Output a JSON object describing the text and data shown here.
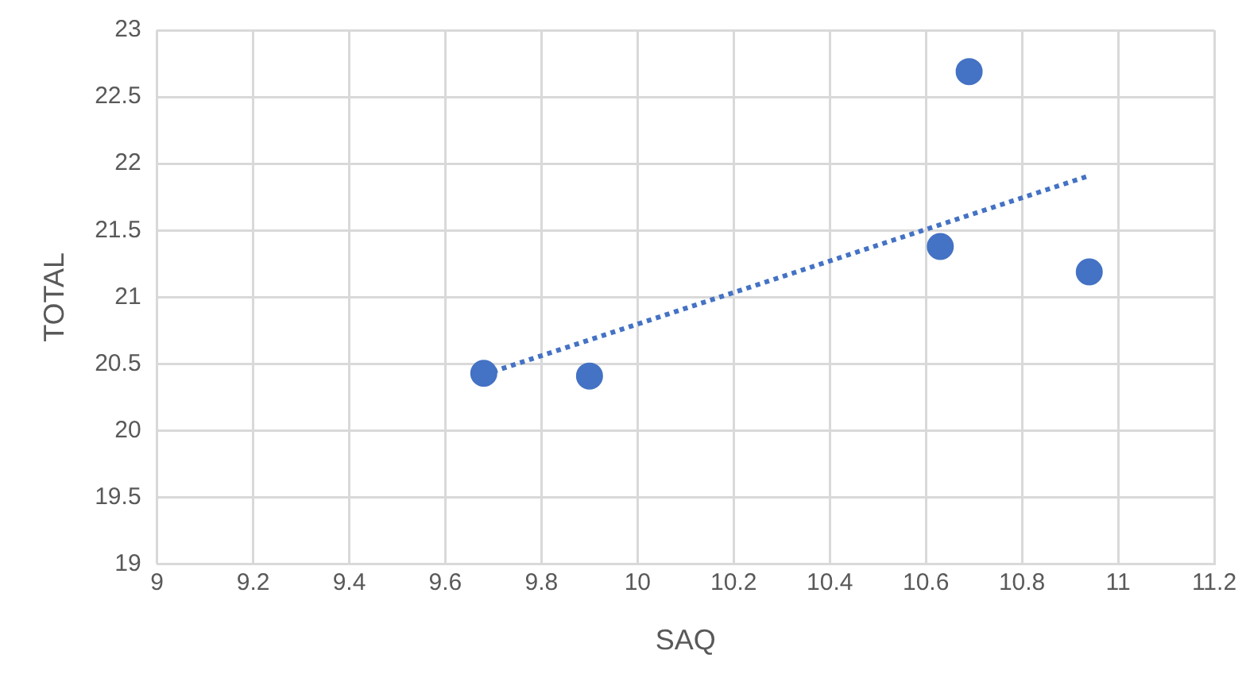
{
  "chart_data": {
    "type": "scatter",
    "xlabel": "SAQ",
    "ylabel": "TOTAL",
    "xlim": [
      9,
      11.2
    ],
    "xticks": [
      9,
      9.2,
      9.4,
      9.6,
      9.8,
      10,
      10.2,
      10.4,
      10.6,
      10.8,
      11,
      11.2
    ],
    "ylim": [
      19,
      23
    ],
    "yticks": [
      19,
      19.5,
      20,
      20.5,
      21,
      21.5,
      22,
      22.5,
      23
    ],
    "grid": true,
    "legend": false,
    "marker": "circle",
    "series": [
      {
        "color": "#4472c4",
        "x": [
          9.68,
          9.9,
          10.63,
          10.69,
          10.94
        ],
        "values": [
          20.43,
          20.41,
          21.38,
          22.69,
          21.19
        ]
      },
      {
        "type": "line",
        "color": "#4472c4",
        "line_style": "dotted",
        "marker": "none",
        "x": [
          9.68,
          10.94
        ],
        "values": [
          20.42,
          21.91
        ]
      }
    ]
  }
}
